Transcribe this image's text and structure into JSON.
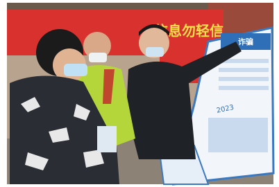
{
  "banner": {
    "text": "信息勿轻信"
  },
  "poster": {
    "title": "诈骗",
    "year": "2023"
  }
}
